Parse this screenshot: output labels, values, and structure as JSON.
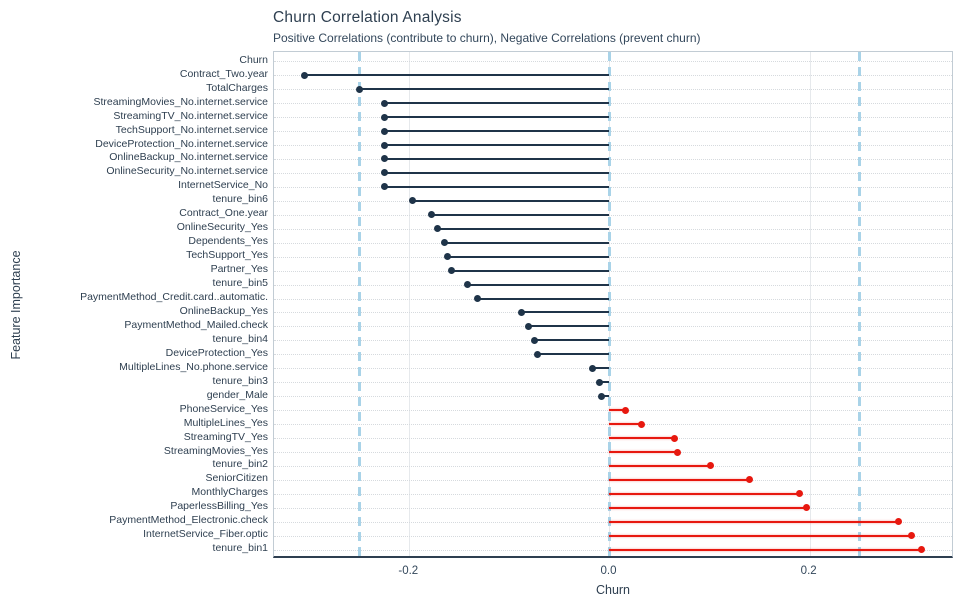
{
  "chart_data": {
    "type": "bar",
    "variant": "horizontal-lollipop",
    "title": "Churn Correlation Analysis",
    "subtitle": "Positive Correlations (contribute to churn), Negative Correlations (prevent churn)",
    "xlabel": "Churn",
    "ylabel": "Feature Importance",
    "xlim": [
      -0.3352,
      0.3442
    ],
    "xticks": [
      -0.2,
      0.0,
      0.2
    ],
    "reference_lines": [
      -0.25,
      0.0,
      0.25
    ],
    "grid": true,
    "legend": false,
    "categories": [
      "Churn",
      "Contract_Two.year",
      "TotalCharges",
      "StreamingMovies_No.internet.service",
      "StreamingTV_No.internet.service",
      "TechSupport_No.internet.service",
      "DeviceProtection_No.internet.service",
      "OnlineBackup_No.internet.service",
      "OnlineSecurity_No.internet.service",
      "InternetService_No",
      "tenure_bin6",
      "Contract_One.year",
      "OnlineSecurity_Yes",
      "Dependents_Yes",
      "TechSupport_Yes",
      "Partner_Yes",
      "tenure_bin5",
      "PaymentMethod_Credit.card..automatic.",
      "OnlineBackup_Yes",
      "PaymentMethod_Mailed.check",
      "tenure_bin4",
      "DeviceProtection_Yes",
      "MultipleLines_No.phone.service",
      "tenure_bin3",
      "gender_Male",
      "PhoneService_Yes",
      "MultipleLines_Yes",
      "StreamingTV_Yes",
      "StreamingMovies_Yes",
      "tenure_bin2",
      "SeniorCitizen",
      "MonthlyCharges",
      "PaperlessBilling_Yes",
      "PaymentMethod_Electronic.check",
      "InternetService_Fiber.optic",
      "tenure_bin1"
    ],
    "values": [
      null,
      -0.305,
      -0.25,
      -0.225,
      -0.225,
      -0.225,
      -0.225,
      -0.225,
      -0.225,
      -0.225,
      -0.197,
      -0.178,
      -0.172,
      -0.165,
      -0.162,
      -0.158,
      -0.142,
      -0.132,
      -0.088,
      -0.081,
      -0.075,
      -0.072,
      -0.017,
      -0.01,
      -0.008,
      0.016,
      0.032,
      0.065,
      0.068,
      0.101,
      0.14,
      0.19,
      0.197,
      0.289,
      0.302,
      0.312
    ],
    "colors": {
      "negative_stem": "#1f3449",
      "positive_stem": "#e7180f",
      "reference_line": "#a9d3e8",
      "gridline": "#d6dade",
      "axis": "#2e3f50",
      "text": "#2e3f50"
    }
  }
}
